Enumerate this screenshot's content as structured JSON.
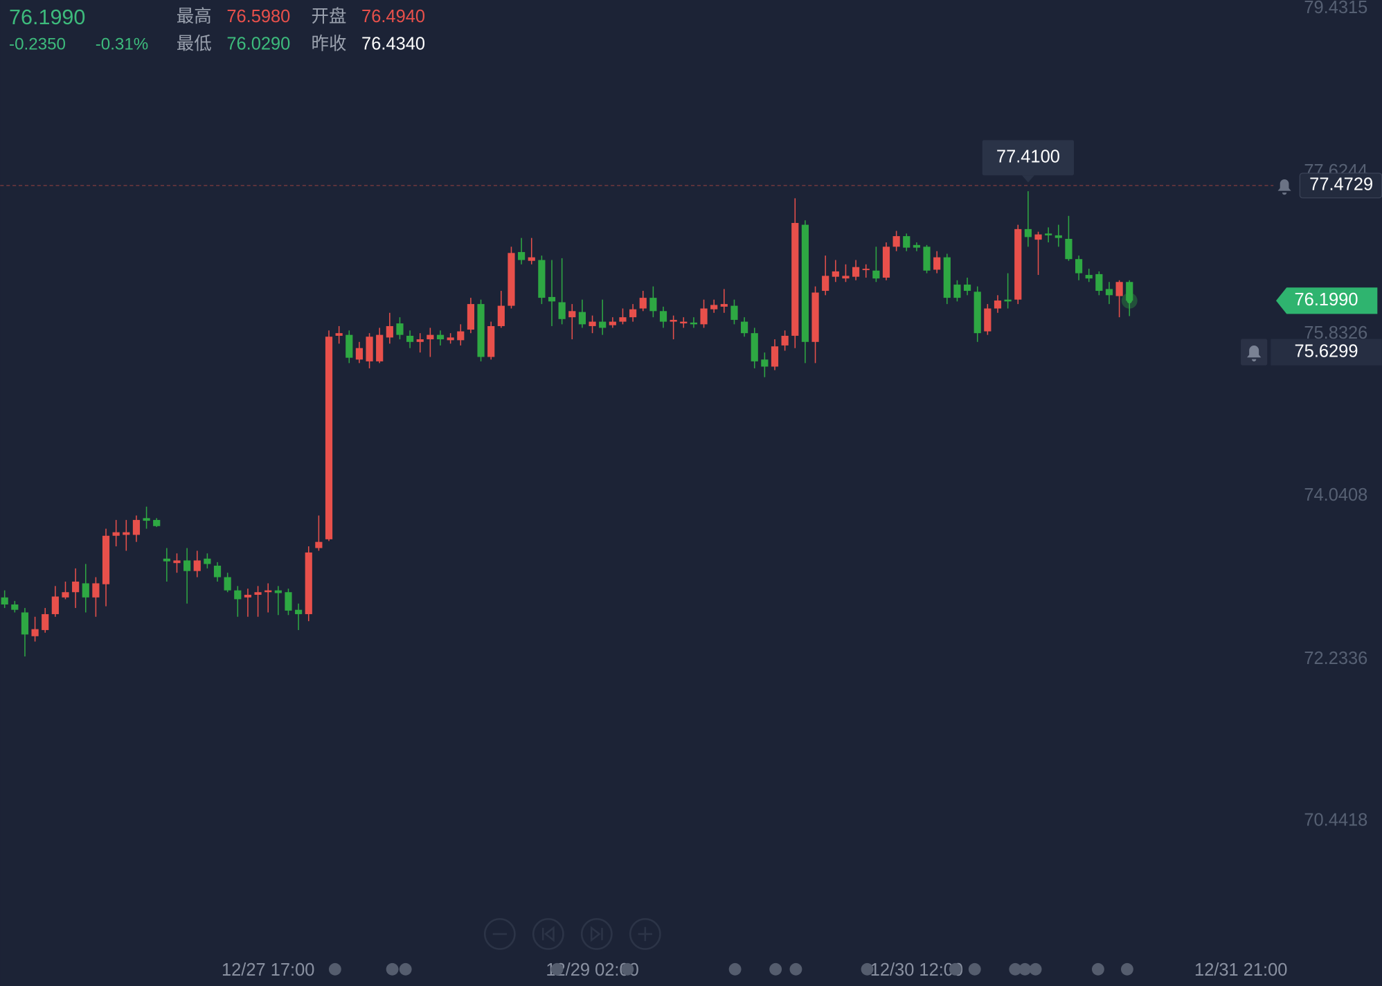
{
  "chart_data": {
    "type": "candlestick",
    "quote": {
      "price": "76.1990",
      "change": "-0.2350",
      "change_pct": "-0.31%",
      "high_label": "最高",
      "high": "76.5980",
      "open_label": "开盘",
      "open": "76.4940",
      "low_label": "最低",
      "low": "76.0290",
      "prev_close_label": "昨收",
      "prev_close": "76.4340"
    },
    "up_color": "#e8504b",
    "down_color": "#2ea843",
    "open": [
      72.917,
      72.839,
      72.751,
      72.488,
      72.556,
      72.732,
      72.917,
      72.975,
      73.073,
      72.917,
      73.063,
      73.599,
      73.609,
      73.609,
      73.794,
      73.774,
      73.346,
      73.297,
      73.326,
      73.209,
      73.346,
      73.268,
      73.141,
      72.995,
      72.917,
      72.946,
      72.975,
      72.995,
      72.975,
      72.78,
      72.732,
      73.463,
      73.56,
      75.811,
      75.821,
      75.548,
      75.528,
      75.528,
      75.792,
      75.948,
      75.811,
      75.743,
      75.772,
      75.821,
      75.762,
      75.762,
      75.879,
      76.162,
      75.577,
      75.918,
      76.143,
      76.737,
      76.64,
      76.649,
      76.24,
      76.182,
      76.016,
      76.074,
      75.918,
      75.967,
      75.928,
      75.967,
      76.016,
      76.113,
      76.231,
      76.084,
      75.967,
      75.948,
      75.957,
      75.938,
      76.104,
      76.133,
      76.143,
      75.967,
      75.84,
      75.548,
      75.47,
      75.704,
      75.811,
      77.039,
      75.743,
      76.308,
      76.464,
      76.445,
      76.464,
      76.542,
      76.532,
      76.454,
      76.796,
      76.913,
      76.815,
      76.796,
      76.542,
      76.679,
      76.377,
      76.377,
      76.298,
      75.86,
      76.113,
      76.211,
      76.211,
      76.991,
      76.874,
      76.942,
      76.922,
      76.883,
      76.659,
      76.484,
      76.493,
      76.328,
      76.25,
      76.406
    ],
    "high": [
      72.995,
      72.878,
      72.8,
      72.703,
      72.8,
      73.043,
      73.092,
      73.238,
      73.287,
      73.141,
      73.677,
      73.774,
      73.774,
      73.823,
      73.921,
      73.794,
      73.463,
      73.404,
      73.463,
      73.433,
      73.404,
      73.307,
      73.19,
      73.043,
      73.014,
      73.043,
      73.073,
      73.043,
      73.014,
      72.849,
      73.482,
      73.823,
      75.87,
      75.918,
      75.87,
      75.743,
      75.84,
      75.899,
      76.065,
      76.016,
      75.87,
      75.84,
      75.899,
      75.87,
      75.84,
      75.938,
      76.231,
      76.211,
      75.967,
      76.308,
      76.796,
      76.893,
      76.893,
      76.698,
      76.649,
      76.669,
      76.162,
      76.211,
      76.035,
      76.211,
      76.016,
      76.113,
      76.162,
      76.308,
      76.357,
      76.133,
      76.035,
      76.016,
      76.016,
      76.211,
      76.211,
      76.328,
      76.211,
      76.016,
      75.899,
      75.626,
      75.772,
      75.87,
      77.332,
      77.088,
      76.357,
      76.698,
      76.649,
      76.601,
      76.649,
      76.601,
      76.796,
      76.844,
      76.971,
      76.942,
      76.844,
      76.815,
      76.747,
      76.718,
      76.425,
      76.454,
      76.357,
      76.162,
      76.26,
      76.503,
      77.039,
      77.41,
      76.962,
      77.01,
      77.039,
      77.137,
      76.698,
      76.552,
      76.523,
      76.406,
      76.425,
      76.425
    ],
    "low": [
      72.8,
      72.751,
      72.264,
      72.429,
      72.527,
      72.703,
      72.897,
      72.8,
      72.751,
      72.703,
      72.819,
      73.482,
      73.433,
      73.531,
      73.677,
      73.696,
      73.092,
      73.19,
      72.849,
      73.141,
      73.238,
      73.092,
      72.975,
      72.703,
      72.703,
      72.703,
      72.751,
      72.722,
      72.722,
      72.556,
      72.654,
      73.433,
      73.541,
      75.724,
      75.509,
      75.509,
      75.451,
      75.509,
      75.724,
      75.772,
      75.675,
      75.626,
      75.577,
      75.704,
      75.724,
      75.704,
      75.84,
      75.528,
      75.548,
      75.899,
      76.113,
      76.601,
      76.601,
      76.162,
      75.918,
      75.938,
      75.772,
      75.899,
      75.84,
      75.821,
      75.899,
      75.938,
      75.967,
      76.084,
      76.016,
      75.899,
      75.772,
      75.899,
      75.899,
      75.899,
      76.065,
      76.065,
      75.938,
      75.801,
      75.451,
      75.353,
      75.431,
      75.646,
      75.675,
      75.509,
      75.509,
      76.26,
      76.406,
      76.406,
      76.425,
      76.454,
      76.406,
      76.425,
      76.747,
      76.747,
      76.747,
      76.503,
      76.503,
      76.162,
      76.191,
      76.26,
      75.743,
      75.821,
      76.065,
      76.113,
      76.162,
      76.796,
      76.484,
      76.844,
      76.796,
      76.64,
      76.425,
      76.406,
      76.26,
      76.162,
      76.016,
      76.029
    ],
    "close": [
      72.839,
      72.78,
      72.507,
      72.566,
      72.732,
      72.927,
      72.975,
      73.092,
      72.917,
      73.073,
      73.599,
      73.638,
      73.638,
      73.774,
      73.765,
      73.706,
      73.316,
      73.326,
      73.209,
      73.326,
      73.287,
      73.141,
      72.995,
      72.897,
      72.946,
      72.975,
      72.995,
      72.965,
      72.771,
      72.732,
      73.414,
      73.531,
      75.801,
      75.84,
      75.568,
      75.675,
      75.801,
      75.821,
      75.918,
      75.821,
      75.743,
      75.772,
      75.821,
      75.772,
      75.792,
      75.86,
      76.162,
      75.577,
      75.918,
      76.143,
      76.727,
      76.649,
      76.679,
      76.231,
      76.191,
      75.996,
      76.084,
      75.938,
      75.967,
      75.899,
      75.967,
      76.016,
      76.104,
      76.231,
      76.084,
      75.967,
      75.987,
      75.967,
      75.938,
      76.113,
      76.152,
      76.162,
      75.987,
      75.84,
      75.528,
      75.47,
      75.694,
      75.811,
      77.059,
      75.743,
      76.289,
      76.474,
      76.523,
      76.474,
      76.571,
      76.552,
      76.445,
      76.796,
      76.913,
      76.786,
      76.786,
      76.532,
      76.679,
      76.231,
      76.231,
      76.308,
      75.84,
      76.113,
      76.201,
      76.191,
      76.991,
      76.903,
      76.932,
      76.922,
      76.893,
      76.659,
      76.503,
      76.445,
      76.308,
      76.26,
      76.406,
      76.199
    ],
    "xlim": [
      -0.435,
      135.9
    ],
    "xticks": [
      {
        "value": 26,
        "label": "12/27 17:00"
      },
      {
        "value": 58,
        "label": "12/29 02:00"
      },
      {
        "value": 90,
        "label": "12/30 12:00"
      },
      {
        "value": 122,
        "label": "12/31 21:00"
      }
    ],
    "ylim": [
      68.619,
      79.525
    ],
    "yticks": [
      79.4315,
      77.6244,
      75.8326,
      74.0408,
      72.2336,
      70.4418
    ],
    "max_marker": {
      "index": 101,
      "value": 77.41,
      "label": "77.4100"
    },
    "last_price": {
      "value": 76.199,
      "label": "76.1990"
    },
    "alert_levels": [
      77.4729,
      75.6299
    ]
  }
}
